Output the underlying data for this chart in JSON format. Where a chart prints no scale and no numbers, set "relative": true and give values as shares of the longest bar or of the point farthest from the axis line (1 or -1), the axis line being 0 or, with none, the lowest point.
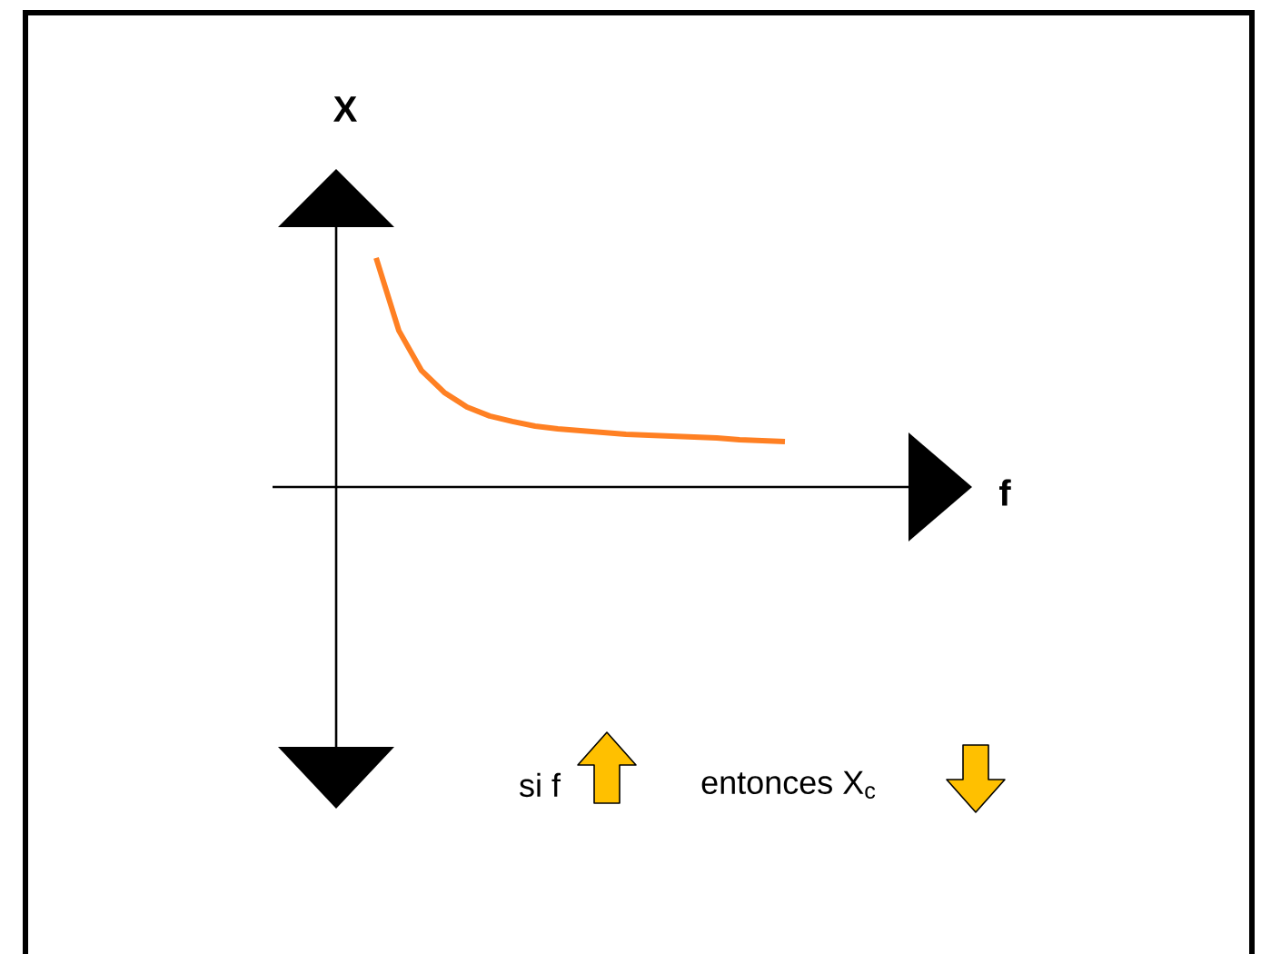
{
  "chart_data": {
    "type": "line",
    "relative": true,
    "ylabel": "X",
    "annotations": [
      "si f",
      "entonces X$_{c}$",
      "f"
    ],
    "categories": [
      null,
      null,
      null,
      null,
      null,
      null,
      null,
      null,
      null,
      null,
      null,
      null,
      null,
      null,
      null,
      null,
      null,
      null,
      null
    ],
    "series": [
      {
        "color": "#ff8023",
        "values": [
          1.0,
          0.683,
          0.508,
          0.413,
          0.349,
          0.31,
          0.286,
          0.266,
          0.254,
          0.246,
          0.238,
          0.23,
          0.226,
          0.222,
          0.218,
          0.214,
          0.206,
          0.202,
          0.198
        ]
      }
    ]
  }
}
